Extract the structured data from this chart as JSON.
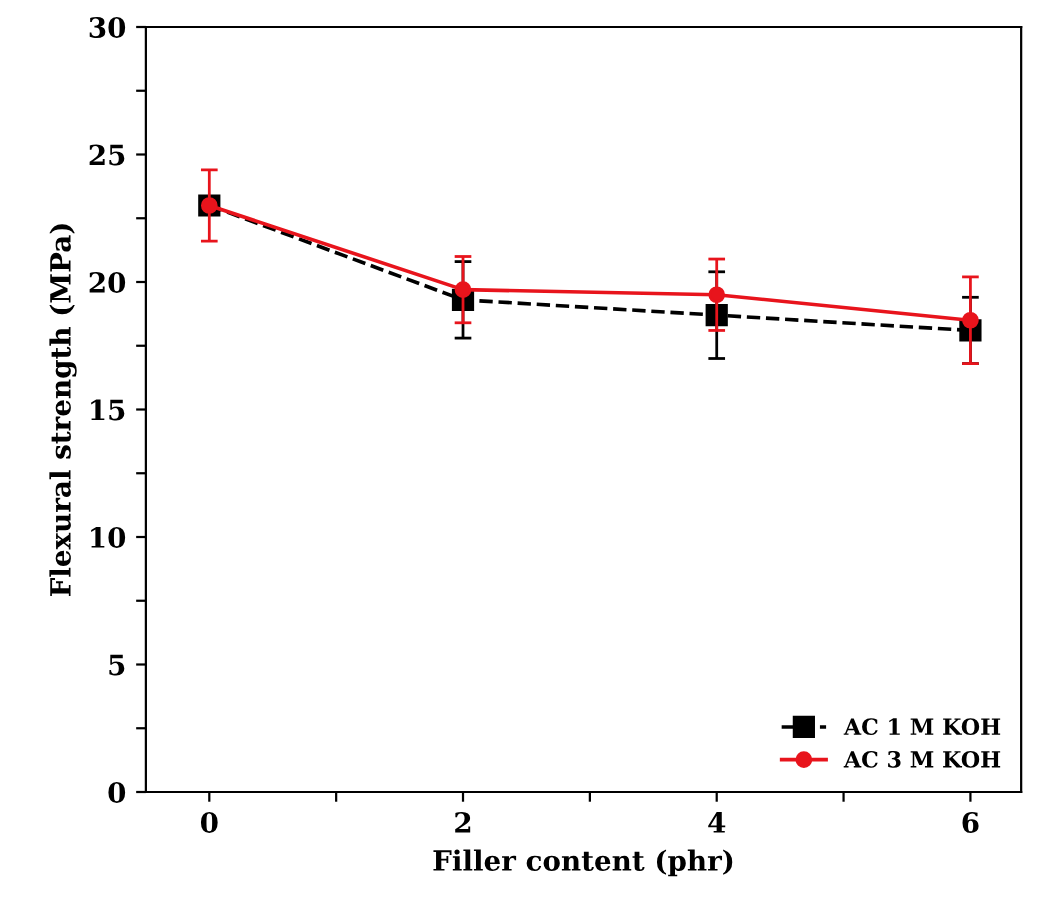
{
  "chart_data": {
    "type": "line",
    "xlabel": "Filler content (phr)",
    "ylabel": "Flexural strength (MPa)",
    "x": [
      0,
      2,
      4,
      6
    ],
    "series": [
      {
        "name": "AC 1 M KOH",
        "color": "#000000",
        "values": [
          23.0,
          19.3,
          18.7,
          18.1
        ],
        "errors": [
          null,
          1.5,
          1.7,
          1.3
        ],
        "marker": "square",
        "line_style": "dashed"
      },
      {
        "name": "AC 3 M KOH",
        "color": "#e8141c",
        "values": [
          23.0,
          19.7,
          19.5,
          18.5
        ],
        "errors": [
          1.4,
          1.3,
          1.4,
          1.7
        ],
        "marker": "circle",
        "line_style": "solid"
      }
    ],
    "xlim": [
      -0.5,
      6.4
    ],
    "ylim": [
      0,
      30
    ],
    "xticks": [
      0,
      {
        "value": 1,
        "label": null
      },
      2,
      {
        "value": 3,
        "label": null
      },
      4,
      {
        "value": 5,
        "label": null
      },
      6
    ],
    "yticks": [
      0,
      {
        "value": 2.5,
        "label": null
      },
      5,
      {
        "value": 7.5,
        "label": null
      },
      10,
      {
        "value": 12.5,
        "label": null
      },
      15,
      {
        "value": 17.5,
        "label": null
      },
      20,
      {
        "value": 22.5,
        "label": null
      },
      25,
      {
        "value": 27.5,
        "label": null
      },
      30
    ],
    "grid": false,
    "legend": "bottom right"
  }
}
